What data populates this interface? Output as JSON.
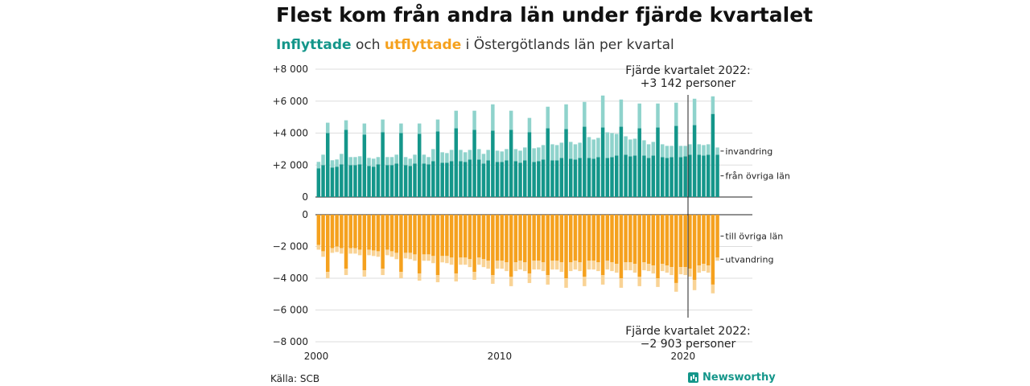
{
  "title": "Flest kom från andra län under fjärde kvartalet",
  "subtitle": {
    "part_in": "Inflyttade",
    "part_mid": " och ",
    "part_out": "utflyttade",
    "part_rest": " i Östergötlands län per kvartal"
  },
  "source": "Källa: SCB",
  "brand": {
    "name": "Newsworthy",
    "icon": "newsworthy-logo-icon"
  },
  "colors": {
    "in_lan": "#14968a",
    "in_invandring": "#8fd3cc",
    "out_lan": "#f5a11e",
    "out_utvandring": "#f9d395"
  },
  "chart_data": {
    "type": "bar",
    "stacked": true,
    "x_start": "2000 Q1",
    "x_end": "2023 Q4",
    "x_ticks": [
      "2000",
      "2010",
      "2020"
    ],
    "top_panel": {
      "ylim": [
        0,
        8000
      ],
      "y_ticks": [
        "0",
        "+2 000",
        "+4 000",
        "+6 000",
        "+8 000"
      ],
      "y_tick_values": [
        0,
        2000,
        4000,
        6000,
        8000
      ],
      "series": [
        {
          "name": "från övriga län",
          "values": [
            1800,
            2000,
            4000,
            1850,
            1900,
            2050,
            4200,
            2000,
            2000,
            2050,
            3900,
            1950,
            1900,
            2050,
            4050,
            2000,
            2000,
            2100,
            4000,
            2000,
            1950,
            2100,
            3950,
            2100,
            2050,
            2250,
            4100,
            2150,
            2150,
            2250,
            4300,
            2250,
            2200,
            2350,
            4200,
            2350,
            2100,
            2300,
            4150,
            2200,
            2200,
            2300,
            4200,
            2250,
            2150,
            2300,
            4050,
            2200,
            2250,
            2350,
            4300,
            2300,
            2300,
            2450,
            4250,
            2400,
            2350,
            2450,
            4400,
            2450,
            2400,
            2500,
            4350,
            2450,
            2500,
            2600,
            4400,
            2650,
            2550,
            2600,
            4300,
            2600,
            2450,
            2600,
            4350,
            2500,
            2450,
            2500,
            4450,
            2500,
            2550,
            2650,
            4500,
            2650,
            2600,
            2650,
            5200,
            2650
          ]
        },
        {
          "name": "invandring",
          "values": [
            400,
            650,
            650,
            450,
            450,
            650,
            600,
            500,
            500,
            500,
            700,
            500,
            500,
            450,
            800,
            500,
            500,
            550,
            600,
            500,
            450,
            550,
            650,
            550,
            450,
            750,
            750,
            650,
            600,
            700,
            1100,
            700,
            600,
            600,
            1200,
            650,
            600,
            650,
            1650,
            700,
            650,
            700,
            1200,
            750,
            750,
            800,
            900,
            850,
            850,
            900,
            1350,
            1000,
            950,
            950,
            1550,
            1050,
            950,
            950,
            1550,
            1300,
            1200,
            1200,
            2000,
            1600,
            1500,
            1350,
            1700,
            1150,
            1050,
            1050,
            1550,
            950,
            850,
            850,
            1500,
            800,
            750,
            700,
            1450,
            700,
            650,
            650,
            1650,
            650,
            650,
            650,
            1100,
            450
          ]
        }
      ]
    },
    "bottom_panel": {
      "ylim": [
        -8000,
        0
      ],
      "y_ticks": [
        "0",
        "−2 000",
        "−4 000",
        "−6 000",
        "−8 000"
      ],
      "y_tick_values": [
        0,
        -2000,
        -4000,
        -6000,
        -8000
      ],
      "series": [
        {
          "name": "till övriga län",
          "values": [
            -1900,
            -2300,
            -3600,
            -2100,
            -2000,
            -2100,
            -3400,
            -2100,
            -2100,
            -2200,
            -3500,
            -2200,
            -2250,
            -2300,
            -3400,
            -2200,
            -2300,
            -2400,
            -3600,
            -2400,
            -2400,
            -2500,
            -3700,
            -2500,
            -2500,
            -2600,
            -3800,
            -2600,
            -2600,
            -2700,
            -3700,
            -2700,
            -2700,
            -2800,
            -3600,
            -2700,
            -2800,
            -2900,
            -3800,
            -2900,
            -2900,
            -3000,
            -3900,
            -3000,
            -2900,
            -3000,
            -3700,
            -2900,
            -2900,
            -3000,
            -3800,
            -2900,
            -2900,
            -3000,
            -4000,
            -3000,
            -2900,
            -3000,
            -3900,
            -2900,
            -2900,
            -3000,
            -3800,
            -2900,
            -3000,
            -3100,
            -4000,
            -3000,
            -3000,
            -3100,
            -3900,
            -3000,
            -3100,
            -3200,
            -4000,
            -3100,
            -3200,
            -3300,
            -4300,
            -3300,
            -3300,
            -3400,
            -4100,
            -3200,
            -3100,
            -3200,
            -4400,
            -2700
          ]
        },
        {
          "name": "utvandring",
          "values": [
            -300,
            -350,
            -400,
            -300,
            -350,
            -350,
            -400,
            -350,
            -350,
            -350,
            -400,
            -350,
            -350,
            -350,
            -400,
            -350,
            -350,
            -400,
            -400,
            -350,
            -400,
            -400,
            -450,
            -400,
            -400,
            -450,
            -450,
            -400,
            -450,
            -450,
            -500,
            -450,
            -450,
            -500,
            -500,
            -450,
            -500,
            -500,
            -550,
            -500,
            -500,
            -550,
            -600,
            -550,
            -550,
            -550,
            -600,
            -550,
            -550,
            -550,
            -600,
            -550,
            -550,
            -600,
            -600,
            -550,
            -550,
            -550,
            -600,
            -550,
            -550,
            -550,
            -600,
            -550,
            -550,
            -550,
            -600,
            -500,
            -500,
            -550,
            -600,
            -500,
            -450,
            -500,
            -550,
            -450,
            -450,
            -500,
            -550,
            -450,
            -500,
            -500,
            -650,
            -450,
            -450,
            -450,
            -550,
            -200
          ]
        }
      ]
    },
    "segment_labels": {
      "top": [
        "invandring",
        "från övriga län"
      ],
      "bottom": [
        "till övriga län",
        "utvandring"
      ]
    },
    "annotations": {
      "top": {
        "line1": "Fjärde kvartalet 2022:",
        "line2": "+3 142 personer"
      },
      "bottom": {
        "line1": "Fjärde kvartalet 2022:",
        "line2": "−2 903 personer"
      }
    }
  }
}
